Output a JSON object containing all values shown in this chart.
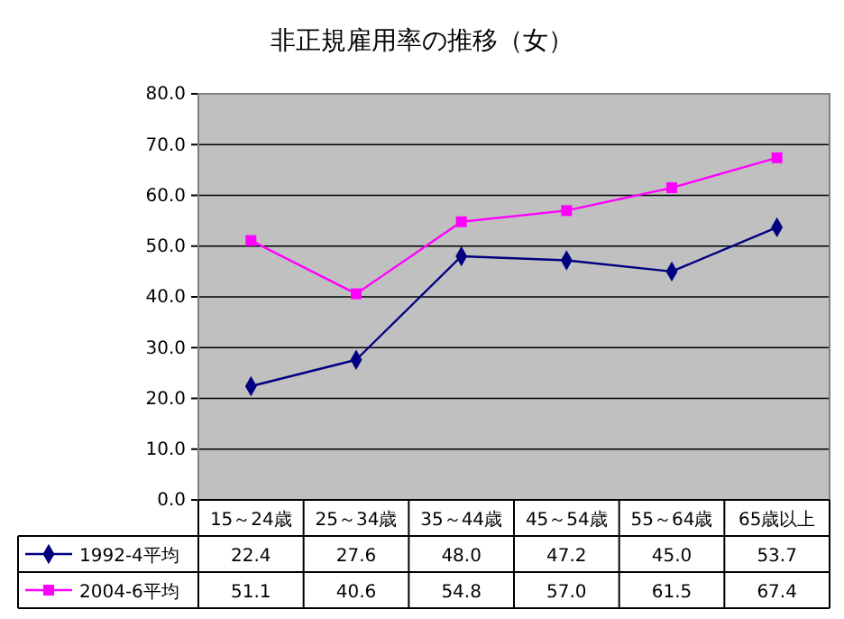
{
  "chart_data": {
    "type": "line",
    "title": "非正規雇用率の推移（女）",
    "categories": [
      "15～24歳",
      "25～34歳",
      "35～44歳",
      "45～54歳",
      "55～64歳",
      "65歳以上"
    ],
    "series": [
      {
        "name": "1992-4平均",
        "color": "#000080",
        "marker": "diamond",
        "values": [
          22.4,
          27.6,
          48.0,
          47.2,
          45.0,
          53.7
        ],
        "value_labels": [
          "22.4",
          "27.6",
          "48.0",
          "47.2",
          "45.0",
          "53.7"
        ]
      },
      {
        "name": "2004-6平均",
        "color": "#ff00ff",
        "marker": "square",
        "values": [
          51.1,
          40.6,
          54.8,
          57.0,
          61.5,
          67.4
        ],
        "value_labels": [
          "51.1",
          "40.6",
          "54.8",
          "57.0",
          "61.5",
          "67.4"
        ]
      }
    ],
    "ylim": [
      0,
      80
    ],
    "yticks": [
      {
        "value": 0,
        "label": "0.0"
      },
      {
        "value": 10,
        "label": "10.0"
      },
      {
        "value": 20,
        "label": "20.0"
      },
      {
        "value": 30,
        "label": "30.0"
      },
      {
        "value": 40,
        "label": "40.0"
      },
      {
        "value": 50,
        "label": "50.0"
      },
      {
        "value": 60,
        "label": "60.0"
      },
      {
        "value": 70,
        "label": "70.0"
      },
      {
        "value": 80,
        "label": "80.0"
      }
    ],
    "grid": "y",
    "legend": "bottom"
  }
}
